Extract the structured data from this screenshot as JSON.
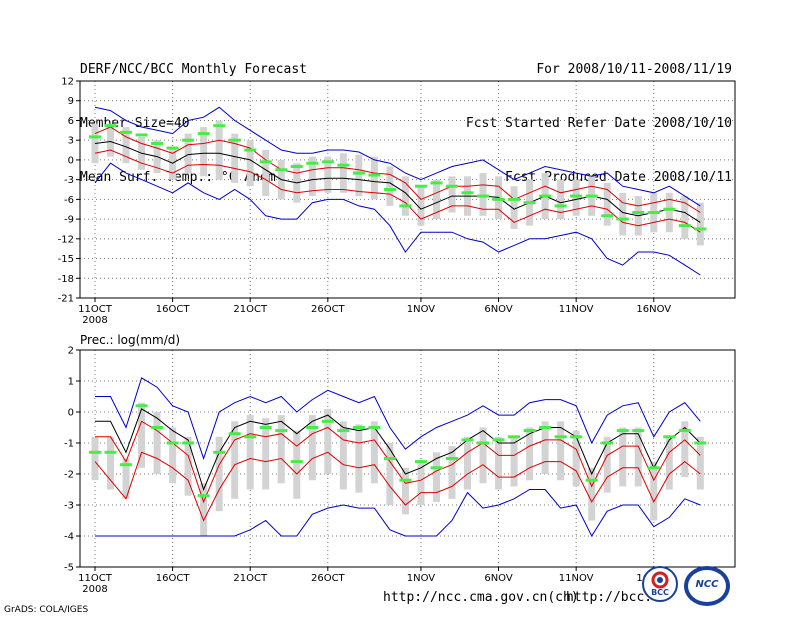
{
  "header": {
    "title": "DERF/NCC/BCC Monthly Forecast",
    "member_size": "Member Size=40",
    "temp_label": "Mean Surf. Temp.: °C Anom.",
    "period": "For 2008/10/11-2008/11/19",
    "refer_date": "Fcst Started Refer Date 2008/10/10",
    "produced_date": "Fcst Produced Date 2008/10/11"
  },
  "footer": {
    "grads": "GrADS: COLA/IGES",
    "url1": "http://ncc.cma.gov.cn(ch)",
    "url2": "http://bcc.c",
    "logo1": "BCC",
    "logo2": "NCC"
  },
  "colors": {
    "ensemble_mean": "#000000",
    "inner_spread": "#dd0000",
    "outer_range": "#0000cc",
    "box": "#d3d3d3",
    "observed": "#44ee44"
  },
  "chart_data": [
    {
      "type": "line",
      "title": "Mean Surf. Temp.: °C Anom.",
      "xlabel": "",
      "ylabel": "°C",
      "ylim": [
        -21,
        12
      ],
      "yticks": [
        12,
        9,
        6,
        3,
        0,
        -3,
        -6,
        -9,
        -12,
        -15,
        -18,
        -21
      ],
      "xtick_labels": [
        "11OCT",
        "16OCT",
        "21OCT",
        "26OCT",
        "1NOV",
        "6NOV",
        "11NOV",
        "16NOV"
      ],
      "xtick_days": [
        0,
        5,
        10,
        15,
        21,
        26,
        31,
        36
      ],
      "xstart_label": "2008",
      "days": 40,
      "mean": [
        2.5,
        2.8,
        2,
        1,
        0.5,
        -0.5,
        0.8,
        1,
        1,
        0.5,
        0,
        -1.5,
        -3,
        -3.5,
        -3,
        -2.8,
        -2.8,
        -3,
        -3.3,
        -3.5,
        -5,
        -7.5,
        -6.5,
        -5.5,
        -5.5,
        -5.5,
        -5.7,
        -7.5,
        -6.5,
        -5.5,
        -6.5,
        -6,
        -5.5,
        -6,
        -8,
        -8.5,
        -8,
        -7.5,
        -8,
        -9.5
      ],
      "upper": [
        4,
        5,
        3.5,
        2.5,
        1.8,
        1,
        2.3,
        2.5,
        3,
        2.5,
        1.8,
        0,
        -1.5,
        -2,
        -1.5,
        -1.2,
        -1.2,
        -1.5,
        -2,
        -2.2,
        -3.5,
        -6,
        -5,
        -4,
        -4,
        -3.8,
        -4,
        -6,
        -5,
        -4,
        -5,
        -4.5,
        -4,
        -4.5,
        -6.5,
        -7,
        -6.5,
        -6,
        -6.5,
        -8
      ],
      "lower": [
        1,
        1.5,
        0.5,
        -0.5,
        -1.2,
        -2,
        -0.8,
        -0.7,
        -0.8,
        -1.3,
        -1.8,
        -3,
        -4.5,
        -5,
        -4.7,
        -4.5,
        -4.5,
        -4.8,
        -5,
        -5.2,
        -6.5,
        -9,
        -8,
        -7,
        -7,
        -7.5,
        -7.5,
        -9.5,
        -8.5,
        -7.5,
        -8,
        -7.5,
        -7,
        -7.5,
        -9.5,
        -10,
        -9.5,
        -9,
        -9.5,
        -11
      ],
      "max": [
        8,
        7.5,
        6,
        5,
        4.5,
        4,
        6,
        6.5,
        8,
        6,
        4.5,
        3,
        1.5,
        1,
        1,
        1.5,
        1.5,
        1.2,
        0,
        -0.5,
        -2,
        -3,
        -2,
        -1,
        -0.5,
        0,
        -1.5,
        -3,
        -2,
        -1,
        -1.5,
        -2,
        -2.5,
        -2,
        -4,
        -4.5,
        -5,
        -4,
        -5.5,
        -7
      ],
      "min": [
        -3.5,
        -0.5,
        -2,
        -3,
        -4,
        -5,
        -3.5,
        -5,
        -6,
        -4.5,
        -6,
        -8.5,
        -9,
        -9,
        -6.5,
        -6,
        -6,
        -7,
        -7.5,
        -10,
        -14,
        -11,
        -11,
        -11,
        -12,
        -12.5,
        -14,
        -13,
        -12,
        -12,
        -11.5,
        -11,
        -12,
        -15,
        -16,
        -14,
        -14,
        -14.5,
        -16,
        -17.5
      ],
      "box_high": [
        5.5,
        5.5,
        5,
        3.5,
        3,
        2,
        4,
        5,
        6,
        4,
        3,
        1.5,
        0,
        -0.5,
        0.5,
        0.5,
        1,
        0.8,
        0.5,
        -1,
        -2.5,
        -4,
        -3,
        -2.5,
        -2.5,
        -2,
        -2.5,
        -4,
        -3,
        -2,
        -3,
        -3,
        -2.5,
        -3.5,
        -5,
        -5.5,
        -5,
        -5,
        -5.5,
        -6.5
      ],
      "box_low": [
        -0.5,
        0.5,
        -0.5,
        -1.5,
        -2,
        -3,
        -2,
        -2.5,
        -3,
        -3.5,
        -4,
        -5.5,
        -6,
        -6.5,
        -5.5,
        -5,
        -5,
        -5.5,
        -6,
        -7,
        -8.5,
        -10,
        -9,
        -8,
        -8.5,
        -8.5,
        -9,
        -10.5,
        -10,
        -9,
        -9,
        -8.5,
        -8.5,
        -10,
        -11.5,
        -11.5,
        -11,
        -11,
        -12,
        -13
      ],
      "observed": [
        3.5,
        5.2,
        4.2,
        3.8,
        2.5,
        1.8,
        3,
        4,
        5.2,
        3,
        1.5,
        -0.3,
        -1.5,
        -1,
        -0.5,
        -0.3,
        -0.8,
        -2,
        -2.3,
        -4.5,
        -7,
        -4,
        -3.5,
        -4,
        -5,
        -5.5,
        -6,
        -6,
        -6.5,
        -5.5,
        -7,
        -5.5,
        -5.5,
        -8.5,
        -9,
        -8,
        -8,
        -7.5,
        -10,
        -10.5
      ]
    },
    {
      "type": "line",
      "title": "Prec.: log(mm/d)",
      "xlabel": "",
      "ylabel": "log(mm/d)",
      "ylim": [
        -5,
        2
      ],
      "yticks": [
        2,
        1,
        0,
        -1,
        -2,
        -3,
        -4,
        -5
      ],
      "xtick_labels": [
        "11OCT",
        "16OCT",
        "21OCT",
        "26OCT",
        "1NOV",
        "6NOV",
        "11NOV",
        "16NOV"
      ],
      "xtick_days": [
        0,
        5,
        10,
        15,
        21,
        26,
        31,
        36
      ],
      "xstart_label": "2008",
      "days": 40,
      "mean": [
        -0.3,
        -0.3,
        -1.3,
        0.1,
        -0.2,
        -0.6,
        -0.9,
        -2.5,
        -1.3,
        -0.5,
        -0.3,
        -0.4,
        -0.3,
        -0.7,
        -0.3,
        -0.1,
        -0.5,
        -0.6,
        -0.5,
        -1.2,
        -2,
        -1.8,
        -1.5,
        -1.3,
        -0.9,
        -0.6,
        -1,
        -1,
        -0.7,
        -0.5,
        -0.5,
        -0.8,
        -2,
        -1,
        -0.7,
        -0.7,
        -1.8,
        -0.9,
        -0.5,
        -1
      ],
      "upper": [
        -0.8,
        -0.8,
        -1.6,
        -0.3,
        -0.6,
        -1,
        -1.4,
        -2.9,
        -1.7,
        -0.9,
        -0.7,
        -0.8,
        -0.7,
        -1.1,
        -0.7,
        -0.5,
        -0.9,
        -1,
        -0.9,
        -1.6,
        -2.3,
        -2.2,
        -1.9,
        -1.7,
        -1.3,
        -1,
        -1.4,
        -1.4,
        -1.1,
        -0.9,
        -0.9,
        -1.2,
        -2.4,
        -1.4,
        -1.1,
        -1.1,
        -2.2,
        -1.3,
        -0.9,
        -1.4
      ],
      "lower": [
        -1.6,
        -2.2,
        -2.8,
        -1.3,
        -1.5,
        -1.8,
        -2.2,
        -3.5,
        -2.5,
        -1.7,
        -1.5,
        -1.6,
        -1.5,
        -2,
        -1.5,
        -1.3,
        -1.7,
        -1.8,
        -1.7,
        -2.4,
        -3,
        -2.6,
        -2.6,
        -2.4,
        -2,
        -1.7,
        -2.1,
        -2.1,
        -1.8,
        -1.6,
        -1.6,
        -1.9,
        -2.9,
        -2.1,
        -1.8,
        -1.8,
        -2.9,
        -2,
        -1.6,
        -2
      ],
      "max": [
        0.5,
        0.5,
        -0.5,
        1.1,
        0.8,
        0.2,
        0,
        -1.5,
        0,
        0.3,
        0.5,
        0.3,
        0.5,
        0,
        0.4,
        0.7,
        0.5,
        0.3,
        0.5,
        -0.5,
        -1.2,
        -0.8,
        -0.5,
        -0.3,
        -0.1,
        0.2,
        -0.1,
        -0.1,
        0.3,
        0.4,
        0.4,
        0.2,
        -1,
        -0.1,
        0.2,
        0.3,
        -0.8,
        0,
        0.3,
        -0.3
      ],
      "min": [
        -4,
        -4,
        -4,
        -4,
        -4,
        -4,
        -4,
        -4,
        -4,
        -4,
        -3.8,
        -3.5,
        -4,
        -4,
        -3.3,
        -3.1,
        -3,
        -3.1,
        -3.1,
        -3.8,
        -4,
        -4,
        -4,
        -3.5,
        -2.6,
        -3.1,
        -3,
        -2.8,
        -2.5,
        -2.5,
        -3.1,
        -3,
        -4,
        -3.2,
        -3,
        -3,
        -3.7,
        -3.4,
        -2.8,
        -3
      ],
      "box_high": [
        -0.8,
        -0.8,
        -1.5,
        0.3,
        0,
        -0.5,
        -0.8,
        -2.3,
        -0.8,
        -0.3,
        -0.1,
        -0.2,
        -0.1,
        -0.6,
        -0.1,
        0.1,
        -0.3,
        -0.4,
        -0.3,
        -1,
        -1.8,
        -1.6,
        -1.3,
        -1.1,
        -0.8,
        -0.5,
        -0.8,
        -0.8,
        -0.5,
        -0.3,
        -0.3,
        -0.6,
        -1.8,
        -0.8,
        -0.5,
        -0.5,
        -1.6,
        -0.8,
        -0.3,
        -0.8
      ],
      "box_low": [
        -2.2,
        -2.5,
        -2.8,
        -1.8,
        -2,
        -2.3,
        -2.7,
        -4,
        -3.2,
        -2.8,
        -2.5,
        -2.5,
        -2.3,
        -2.8,
        -2.2,
        -2,
        -2.5,
        -2.6,
        -2.3,
        -3,
        -3.3,
        -3,
        -2.9,
        -2.8,
        -2.5,
        -2.3,
        -2.5,
        -2.4,
        -2.2,
        -2,
        -2.2,
        -2.4,
        -3.5,
        -2.6,
        -2.4,
        -2.4,
        -3.5,
        -2.5,
        -2.1,
        -2.5
      ],
      "observed": [
        -1.3,
        -1.3,
        -1.7,
        0.2,
        -0.5,
        -1,
        -1,
        -2.7,
        -1.3,
        -0.7,
        -0.8,
        -0.5,
        -0.6,
        -1.6,
        -0.5,
        -0.3,
        -0.6,
        -0.5,
        -0.5,
        -1.5,
        -2.2,
        -1.6,
        -1.8,
        -1.5,
        -0.9,
        -1,
        -0.9,
        -0.8,
        -0.6,
        -0.5,
        -0.8,
        -0.8,
        -2.2,
        -1,
        -0.6,
        -0.6,
        -1.8,
        -0.8,
        -0.6,
        -1
      ]
    }
  ]
}
